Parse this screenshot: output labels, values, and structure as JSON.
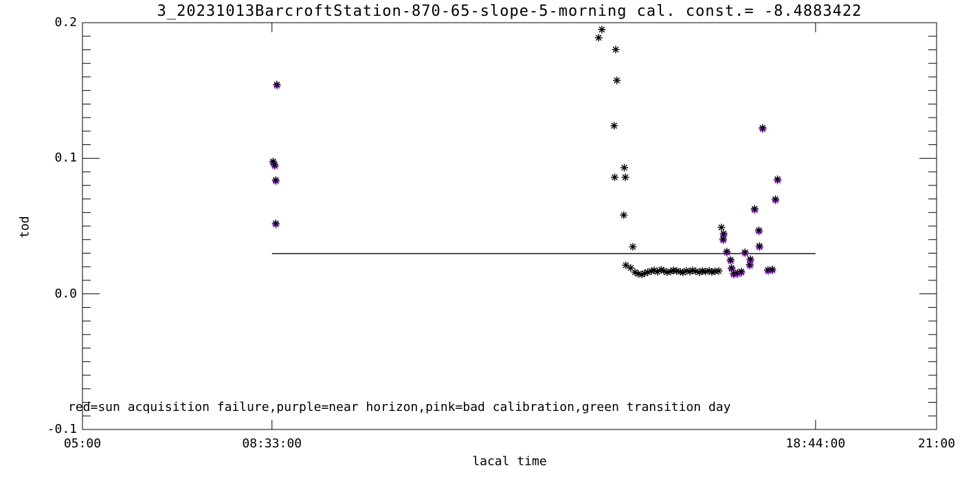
{
  "window": {
    "background": "#ffffff",
    "foreground": "#000000"
  },
  "chart_data": {
    "type": "scatter",
    "title": "3_20231013BarcroftStation-870-65-slope-5-morning cal. const.= -8.4883422",
    "xlabel": "lacal time",
    "ylabel": "tod",
    "xlim": [
      5,
      21
    ],
    "ylim": [
      -0.1,
      0.2
    ],
    "x_ticks": [
      {
        "t": 5.0,
        "label": "05:00"
      },
      {
        "t": 8.55,
        "label": "08:33:00"
      },
      {
        "t": 18.7333,
        "label": "18:44:00"
      },
      {
        "t": 21.0,
        "label": "21:00"
      }
    ],
    "y_ticks": [
      {
        "v": -0.1,
        "label": "-0.1"
      },
      {
        "v": 0.0,
        "label": "0.0"
      },
      {
        "v": 0.1,
        "label": "0.1"
      },
      {
        "v": 0.2,
        "label": "0.2"
      }
    ],
    "y_minor_step": 0.01,
    "grid": false,
    "marker": "asterisk",
    "annotation": "red=sun acquisition failure,purple=near horizon,pink=bad calibration,green transition day",
    "colors": {
      "normal": "#000000",
      "near_horizon": "#A020F0"
    },
    "reference_line": {
      "value": 0.0297,
      "t_start": 8.55,
      "t_end": 18.7333,
      "color": "#000000"
    },
    "series": [
      {
        "name": "normal",
        "color_key": "normal",
        "points": [
          [
            14.73,
            0.1949
          ],
          [
            14.67,
            0.1889
          ],
          [
            14.99,
            0.1802
          ],
          [
            15.01,
            0.1574
          ],
          [
            14.96,
            0.124
          ],
          [
            15.15,
            0.0931
          ],
          [
            14.97,
            0.086
          ],
          [
            15.17,
            0.086
          ],
          [
            15.14,
            0.0581
          ],
          [
            15.31,
            0.0347
          ],
          [
            15.18,
            0.0211
          ],
          [
            15.27,
            0.0191
          ],
          [
            15.35,
            0.016
          ],
          [
            15.41,
            0.0148
          ],
          [
            15.48,
            0.0143
          ],
          [
            15.53,
            0.0152
          ],
          [
            15.59,
            0.016
          ],
          [
            15.66,
            0.0168
          ],
          [
            15.71,
            0.0174
          ],
          [
            15.77,
            0.0163
          ],
          [
            15.84,
            0.0178
          ],
          [
            15.89,
            0.017
          ],
          [
            15.95,
            0.0159
          ],
          [
            16.02,
            0.0165
          ],
          [
            16.07,
            0.0174
          ],
          [
            16.13,
            0.0169
          ],
          [
            16.2,
            0.0163
          ],
          [
            16.25,
            0.0158
          ],
          [
            16.31,
            0.017
          ],
          [
            16.38,
            0.0164
          ],
          [
            16.43,
            0.0174
          ],
          [
            16.49,
            0.0166
          ],
          [
            16.56,
            0.0159
          ],
          [
            16.61,
            0.0169
          ],
          [
            16.67,
            0.0164
          ],
          [
            16.74,
            0.017
          ],
          [
            16.79,
            0.0161
          ],
          [
            16.85,
            0.0166
          ],
          [
            16.92,
            0.0169
          ],
          [
            16.97,
            0.049
          ]
        ]
      },
      {
        "name": "near_horizon",
        "color_key": "near_horizon",
        "points": [
          [
            8.57,
            0.0976
          ],
          [
            8.6,
            0.0951
          ],
          [
            8.62,
            0.0839
          ],
          [
            8.62,
            0.052
          ],
          [
            8.64,
            0.1544
          ],
          [
            17.01,
            0.0444
          ],
          [
            17.0,
            0.0404
          ],
          [
            17.07,
            0.0312
          ],
          [
            17.14,
            0.0251
          ],
          [
            17.16,
            0.0191
          ],
          [
            17.2,
            0.015
          ],
          [
            17.27,
            0.0155
          ],
          [
            17.34,
            0.0165
          ],
          [
            17.41,
            0.0307
          ],
          [
            17.5,
            0.0216
          ],
          [
            17.51,
            0.0256
          ],
          [
            17.59,
            0.0627
          ],
          [
            17.67,
            0.0469
          ],
          [
            17.68,
            0.0353
          ],
          [
            17.74,
            0.1224
          ],
          [
            17.84,
            0.0176
          ],
          [
            17.92,
            0.0181
          ],
          [
            17.98,
            0.0698
          ],
          [
            18.02,
            0.0845
          ]
        ]
      }
    ]
  }
}
